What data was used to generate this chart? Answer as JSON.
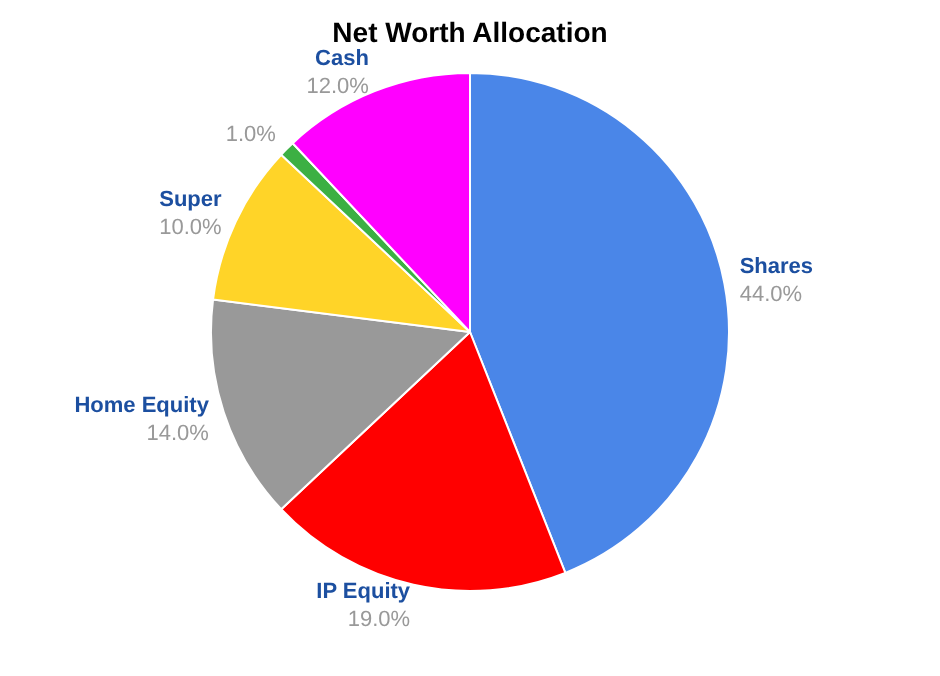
{
  "chart_data": {
    "type": "pie",
    "title": "Net Worth Allocation",
    "categories": [
      "Shares",
      "IP Equity",
      "Home Equity",
      "Super",
      null,
      "Cash"
    ],
    "values": [
      44,
      19,
      14,
      10,
      1,
      12
    ],
    "value_labels": [
      "44.0%",
      "19.0%",
      "14.0%",
      "10.0%",
      "1.0%",
      "12.0%"
    ],
    "colors": [
      "#4a86e8",
      "#ff0000",
      "#999999",
      "#ffd428",
      "#3cb043",
      "#ff00ff"
    ],
    "legend": false
  }
}
